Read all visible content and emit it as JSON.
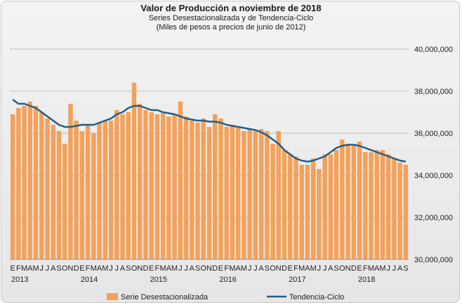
{
  "chart_data": {
    "type": "bar+line",
    "title": "Valor de Producción a noviembre de 2018",
    "subtitle": "Series Desestacionalizada y de Tendencia-Ciclo",
    "subtitle2": "(Miles de pesos a precios de junio de 2012)",
    "ylim": [
      30000000,
      40000000
    ],
    "yticks": [
      "40,000,000",
      "38,000,000",
      "36,000,000",
      "34,000,000",
      "32,000,000",
      "30,000,000"
    ],
    "yticks_values": [
      40000000,
      38000000,
      36000000,
      34000000,
      32000000,
      30000000
    ],
    "month_labels": [
      "E",
      "F",
      "M",
      "A",
      "M",
      "J",
      "J",
      "A",
      "S",
      "O",
      "N",
      "D"
    ],
    "years": [
      "2013",
      "2014",
      "2015",
      "2016",
      "2017",
      "2018"
    ],
    "grid": "horizontal",
    "legend_position": "bottom",
    "colors": {
      "bar": "#f4a15a",
      "line": "#1f5f8b",
      "grid": "#c0c0c0"
    },
    "series": [
      {
        "name": "Serie Desestacionalizada",
        "kind": "bar",
        "values": [
          36900000,
          37200000,
          37300000,
          37500000,
          37300000,
          37000000,
          36700000,
          36400000,
          36100000,
          35500000,
          37400000,
          36600000,
          36100000,
          36400000,
          36000000,
          36500000,
          36600000,
          36600000,
          37100000,
          36900000,
          37000000,
          38400000,
          37400000,
          37100000,
          37000000,
          36900000,
          37000000,
          36800000,
          36900000,
          37500000,
          36800000,
          36600000,
          36500000,
          36700000,
          36300000,
          36900000,
          36700000,
          36300000,
          36400000,
          36300000,
          36100000,
          36200000,
          36100000,
          36200000,
          36100000,
          35500000,
          36100000,
          35200000,
          35000000,
          34900000,
          34500000,
          34500000,
          34800000,
          34300000,
          35000000,
          35000000,
          35200000,
          35700000,
          35500000,
          35400000,
          35600000,
          35100000,
          35100000,
          35200000,
          35200000,
          35000000,
          34800000,
          34600000,
          34500000
        ]
      },
      {
        "name": "Tendencia-Ciclo",
        "kind": "line",
        "values": [
          37600000,
          37400000,
          37400000,
          37300000,
          37200000,
          37000000,
          36800000,
          36600000,
          36400000,
          36300000,
          36300000,
          36350000,
          36400000,
          36400000,
          36400000,
          36500000,
          36600000,
          36700000,
          36900000,
          37000000,
          37200000,
          37300000,
          37300000,
          37200000,
          37100000,
          37100000,
          37000000,
          36950000,
          36900000,
          36800000,
          36700000,
          36650000,
          36600000,
          36600000,
          36550000,
          36550000,
          36500000,
          36400000,
          36350000,
          36300000,
          36250000,
          36200000,
          36150000,
          36050000,
          35900000,
          35700000,
          35500000,
          35200000,
          35000000,
          34800000,
          34700000,
          34650000,
          34700000,
          34800000,
          34900000,
          35100000,
          35300000,
          35400000,
          35450000,
          35450000,
          35400000,
          35300000,
          35200000,
          35100000,
          35000000,
          34900000,
          34800000,
          34700000,
          34650000
        ]
      }
    ]
  }
}
